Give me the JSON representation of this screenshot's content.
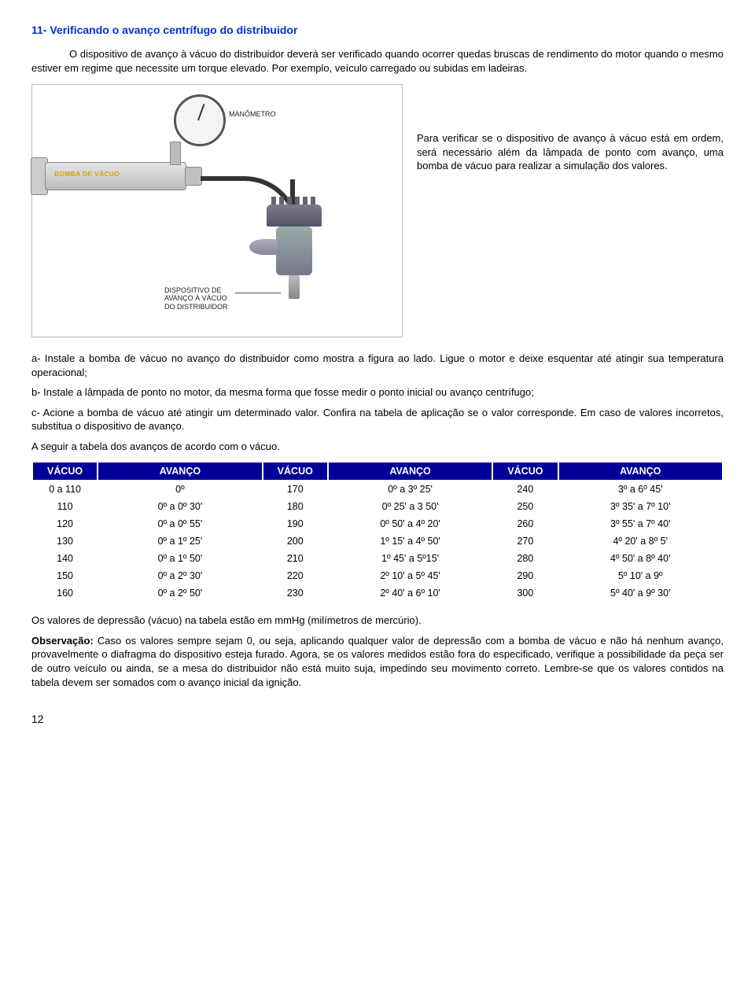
{
  "section_title": "11- Verificando o avanço centrífugo do distribuidor",
  "intro": "O dispositivo de avanço à vácuo do distribuidor deverá ser verificado quando ocorrer quedas bruscas de rendimento do motor quando o mesmo estiver em regime que necessite um torque elevado. Por exemplo, veículo carregado ou subidas em ladeiras.",
  "figure": {
    "gauge_label": "MANÔMETRO",
    "pump_label": "BOMBA DE VÁCUO",
    "dist_label_line1": "DISPOSITIVO DE",
    "dist_label_line2": "AVANÇO À VÁCUO",
    "dist_label_line3": "DO DISTRIBUIDOR"
  },
  "side_text": "Para verificar se o dispositivo de avanço à vácuo está em ordem, será necessário além da lâmpada de ponto com avanço, uma bomba de vácuo para realizar a simulação dos valores.",
  "p_a": "a- Instale a bomba de vácuo no avanço do distribuidor como mostra a figura ao lado. Ligue o motor e deixe esquentar até atingir sua temperatura operacional;",
  "p_b": "b- Instale a lâmpada de ponto no motor, da mesma forma que fosse medir o ponto inicial ou avanço centrífugo;",
  "p_c": "c- Acione a bomba de vácuo até atingir um determinado valor. Confira na tabela de aplicação se o valor corresponde. Em caso de valores incorretos, substitua o dispositivo de avanço.",
  "p_c2": "A seguir a tabela dos avanços de acordo com o vácuo.",
  "table": {
    "headers": [
      "VÁCUO",
      "AVANÇO",
      "VÁCUO",
      "AVANÇO",
      "VÁCUO",
      "AVANÇO"
    ],
    "rows": [
      [
        "0 a 110",
        "0º",
        "170",
        "0º a 3º 25'",
        "240",
        "3º a 6º 45'"
      ],
      [
        "110",
        "0º a 0º 30'",
        "180",
        "0º 25' a 3 50'",
        "250",
        "3º 35' a 7º 10'"
      ],
      [
        "120",
        "0º a 0º 55'",
        "190",
        "0º 50' a 4º 20'",
        "260",
        "3º 55' a 7º 40'"
      ],
      [
        "130",
        "0º a 1º 25'",
        "200",
        "1º 15' a 4º 50'",
        "270",
        "4º 20' a 8º 5'"
      ],
      [
        "140",
        "0º a 1º 50'",
        "210",
        "1º 45' a 5º15'",
        "280",
        "4º 50' a 8º 40'"
      ],
      [
        "150",
        "0º a 2º 30'",
        "220",
        "2º 10' a 5º 45'",
        "290",
        "5º 10' a 9º"
      ],
      [
        "160",
        "0º a 2º 50'",
        "230",
        "2º 40' a 6º 10'",
        "300",
        "5º 40' a 9º 30'"
      ]
    ]
  },
  "after_table": "Os valores de depressão (vácuo) na tabela estão em mmHg (milímetros de mercúrio).",
  "obs_label": "Observação:",
  "obs_text": " Caso os valores sempre sejam 0, ou seja, aplicando qualquer valor de depressão com a bomba de vácuo e não há nenhum avanço, provavelmente o diafragma do dispositivo esteja furado. Agora, se os valores medidos estão fora do especificado, verifique a possibilidade da peça ser de outro veículo ou ainda, se a mesa do distribuidor não está muito suja, impedindo seu movimento correto. Lembre-se que os valores contidos na tabela devem ser somados com o avanço inicial da ignição.",
  "page_number": "12"
}
